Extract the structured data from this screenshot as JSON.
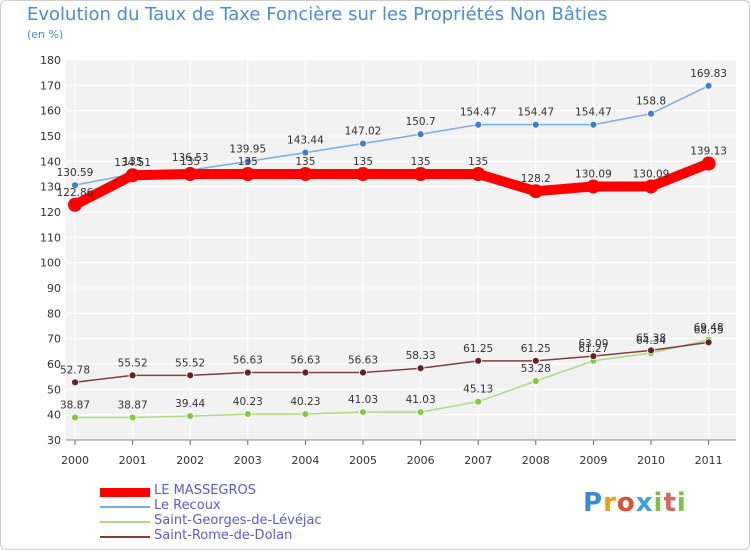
{
  "title": "Evolution du Taux de Taxe Foncière sur les Propriétés Non Bâties",
  "unit": "(en %)",
  "logo": "Proxiti",
  "chart_data": {
    "type": "line",
    "title": "Evolution du Taux de Taxe Foncière sur les Propriétés Non Bâties",
    "ylabel": "(en %)",
    "xlabel": "",
    "ylim": [
      30,
      180
    ],
    "yticks": [
      30,
      40,
      50,
      60,
      70,
      80,
      90,
      100,
      110,
      120,
      130,
      140,
      150,
      160,
      170,
      180
    ],
    "grid": true,
    "legend_position": "bottom-left",
    "categories": [
      "2000",
      "2001",
      "2002",
      "2003",
      "2004",
      "2005",
      "2006",
      "2007",
      "2008",
      "2009",
      "2010",
      "2011"
    ],
    "series": [
      {
        "name": "LE MASSEGROS",
        "color": "#ff0000",
        "emphasis": true,
        "values": [
          122.86,
          134.51,
          135,
          135,
          135,
          135,
          135,
          135,
          128.2,
          130.09,
          130.09,
          139.13
        ],
        "labels": [
          "122.86",
          "134.51",
          "135",
          "135",
          "135",
          "135",
          "135",
          "135",
          "128.2",
          "130.09",
          "130.09",
          "139.13"
        ]
      },
      {
        "name": "Le Recoux",
        "color": "#7aaee0",
        "marker": "#3a7fd0",
        "values": [
          130.59,
          135,
          136.53,
          139.95,
          143.44,
          147.02,
          150.7,
          154.47,
          154.47,
          154.47,
          158.8,
          169.83
        ],
        "labels": [
          "130.59",
          "135",
          "136.53",
          "139.95",
          "143.44",
          "147.02",
          "150.7",
          "154.47",
          "154.47",
          "154.47",
          "158.8",
          "169.83"
        ]
      },
      {
        "name": "Saint-Georges-de-Lévéjac",
        "color": "#a8dd80",
        "marker": "#80cc40",
        "values": [
          38.87,
          38.87,
          39.44,
          40.23,
          40.23,
          41.03,
          41.03,
          45.13,
          53.28,
          61.27,
          64.34,
          69.48
        ],
        "labels": [
          "38.87",
          "38.87",
          "39.44",
          "40.23",
          "40.23",
          "41.03",
          "41.03",
          "45.13",
          "53.28",
          "61.27",
          "64.34",
          "69.48"
        ]
      },
      {
        "name": "Saint-Rome-de-Dolan",
        "color": "#804040",
        "marker": "#6a2020",
        "values": [
          52.78,
          55.52,
          55.52,
          56.63,
          56.63,
          56.63,
          58.33,
          61.25,
          61.25,
          63.09,
          65.38,
          68.55
        ],
        "labels": [
          "52.78",
          "55.52",
          "55.52",
          "56.63",
          "56.63",
          "56.63",
          "58.33",
          "61.25",
          "61.25",
          "63.09",
          "65.38",
          "68.55"
        ]
      }
    ]
  }
}
